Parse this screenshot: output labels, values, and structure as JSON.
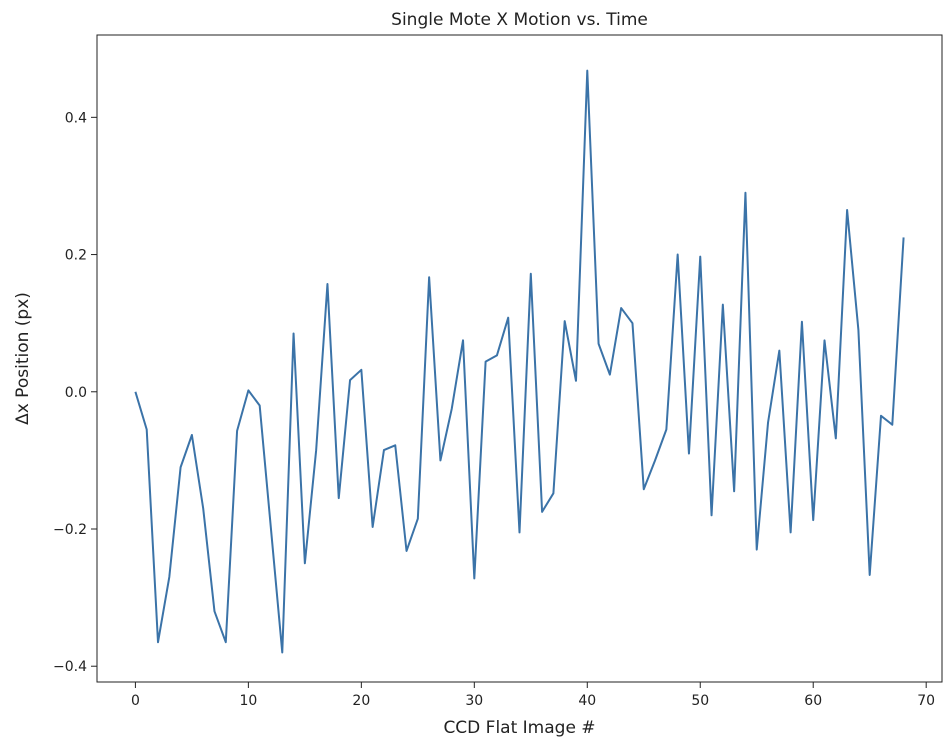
{
  "chart_data": {
    "type": "line",
    "title": "Single Mote X Motion vs. Time",
    "xlabel": "CCD Flat Image #",
    "ylabel": "Δx Position (px)",
    "xlim": [
      -3.4,
      71.4
    ],
    "ylim": [
      -0.423,
      0.52
    ],
    "xticks": [
      0,
      10,
      20,
      30,
      40,
      50,
      60,
      70
    ],
    "xtick_labels": [
      "0",
      "10",
      "20",
      "30",
      "40",
      "50",
      "60",
      "70"
    ],
    "yticks": [
      -0.4,
      -0.2,
      0.0,
      0.2,
      0.4
    ],
    "ytick_labels": [
      "−0.4",
      "−0.2",
      "0.0",
      "0.2",
      "0.4"
    ],
    "grid": false,
    "legend": "none",
    "series": [
      {
        "color": "#3b73a8",
        "x": [
          0,
          1,
          2,
          3,
          4,
          5,
          6,
          7,
          8,
          9,
          10,
          11,
          12,
          13,
          14,
          15,
          16,
          17,
          18,
          19,
          20,
          21,
          22,
          23,
          24,
          25,
          26,
          27,
          28,
          29,
          30,
          31,
          32,
          33,
          34,
          35,
          36,
          37,
          38,
          39,
          40,
          41,
          42,
          43,
          44,
          45,
          46,
          47,
          48,
          49,
          50,
          51,
          52,
          53,
          54,
          55,
          56,
          57,
          58,
          59,
          60,
          61,
          62,
          63,
          64,
          65,
          66,
          67,
          68
        ],
        "values": [
          0.0,
          -0.055,
          -0.365,
          -0.27,
          -0.11,
          -0.063,
          -0.17,
          -0.32,
          -0.365,
          -0.057,
          0.002,
          -0.02,
          -0.2,
          -0.38,
          0.085,
          -0.25,
          -0.085,
          0.157,
          -0.155,
          0.017,
          0.032,
          -0.197,
          -0.085,
          -0.078,
          -0.232,
          -0.185,
          0.167,
          -0.1,
          -0.025,
          0.075,
          -0.272,
          0.044,
          0.053,
          0.108,
          -0.205,
          0.172,
          -0.175,
          -0.148,
          0.103,
          0.016,
          0.468,
          0.07,
          0.025,
          0.122,
          0.1,
          -0.142,
          -0.1,
          -0.055,
          0.2,
          -0.09,
          0.197,
          -0.18,
          0.127,
          -0.145,
          0.29,
          -0.23,
          -0.045,
          0.06,
          -0.205,
          0.102,
          -0.187,
          0.075,
          -0.068,
          0.265,
          0.09,
          -0.267,
          -0.035,
          -0.048,
          0.225
        ]
      }
    ]
  }
}
